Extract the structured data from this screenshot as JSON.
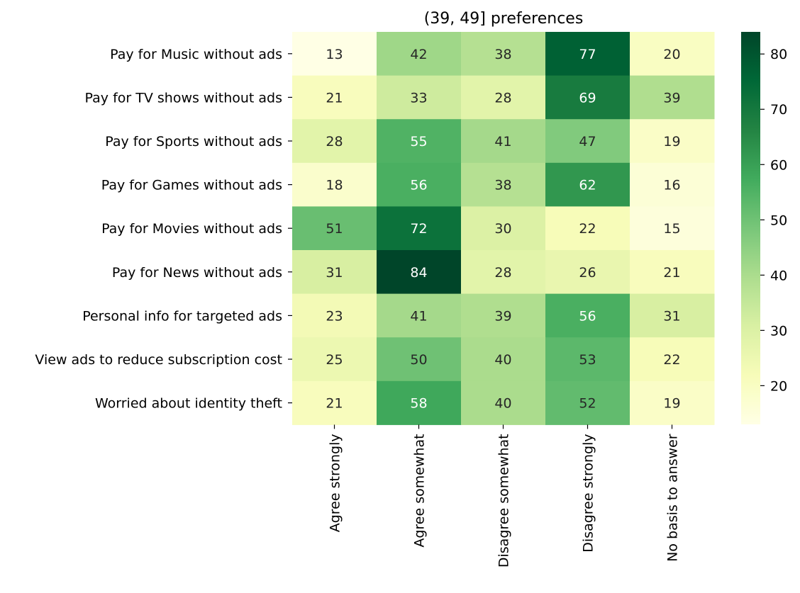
{
  "chart_data": {
    "type": "heatmap",
    "title": "(39, 49] preferences",
    "xlabel": "",
    "ylabel": "",
    "rows": [
      "Pay for Music without ads",
      "Pay for TV shows without ads",
      "Pay for Sports without ads",
      "Pay for Games without ads",
      "Pay for Movies without ads",
      "Pay for News without ads",
      "Personal info for targeted ads",
      "View ads to reduce subscription cost",
      "Worried about identity theft"
    ],
    "columns": [
      "Agree strongly",
      "Agree somewhat",
      "Disagree somewhat",
      "Disagree strongly",
      "No basis to answer"
    ],
    "values": [
      [
        13,
        42,
        38,
        77,
        20
      ],
      [
        21,
        33,
        28,
        69,
        39
      ],
      [
        28,
        55,
        41,
        47,
        19
      ],
      [
        18,
        56,
        38,
        62,
        16
      ],
      [
        51,
        72,
        30,
        22,
        15
      ],
      [
        31,
        84,
        28,
        26,
        21
      ],
      [
        23,
        41,
        39,
        56,
        31
      ],
      [
        25,
        50,
        40,
        53,
        22
      ],
      [
        21,
        58,
        40,
        52,
        19
      ]
    ],
    "colormap": "YlGn",
    "vmin": 13,
    "vmax": 84,
    "colorbar_ticks": [
      20,
      30,
      40,
      50,
      60,
      70,
      80
    ],
    "annotated": true,
    "grid": false
  }
}
